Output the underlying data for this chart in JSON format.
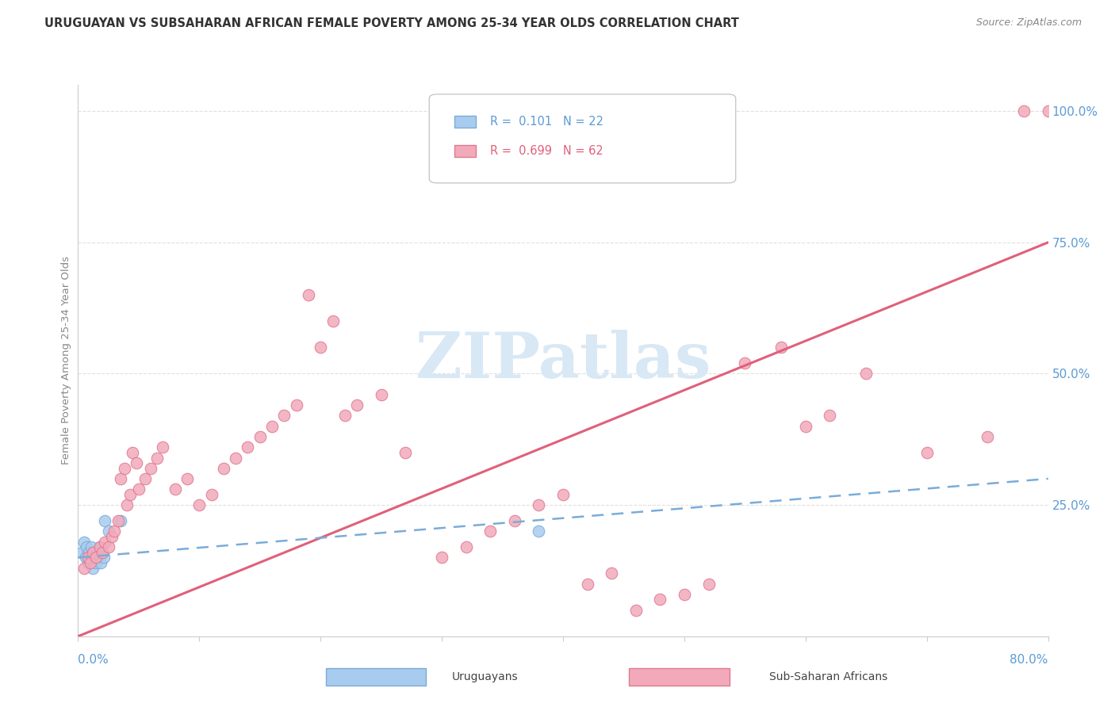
{
  "title": "URUGUAYAN VS SUBSAHARAN AFRICAN FEMALE POVERTY AMONG 25-34 YEAR OLDS CORRELATION CHART",
  "source": "Source: ZipAtlas.com",
  "ylabel": "Female Poverty Among 25-34 Year Olds",
  "xlim": [
    0.0,
    0.8
  ],
  "ylim": [
    0.0,
    1.05
  ],
  "blue_scatter_color": "#A8CCEE",
  "blue_scatter_edge": "#7AACD8",
  "pink_scatter_color": "#F2AABB",
  "pink_scatter_edge": "#E07890",
  "blue_line_color": "#7AACD8",
  "pink_line_color": "#E0607A",
  "watermark_color": "#D8E8F5",
  "ytick_color": "#5B9BD5",
  "xtick_label_color": "#5B9BD5",
  "grid_color": "#E0E0E0",
  "title_color": "#333333",
  "source_color": "#888888",
  "ylabel_color": "#888888",
  "uru_x": [
    0.003,
    0.005,
    0.006,
    0.007,
    0.008,
    0.009,
    0.01,
    0.011,
    0.012,
    0.013,
    0.014,
    0.015,
    0.016,
    0.017,
    0.018,
    0.019,
    0.02,
    0.021,
    0.022,
    0.025,
    0.035,
    0.38
  ],
  "uru_y": [
    0.16,
    0.18,
    0.15,
    0.17,
    0.14,
    0.16,
    0.15,
    0.17,
    0.13,
    0.16,
    0.15,
    0.14,
    0.16,
    0.15,
    0.17,
    0.14,
    0.16,
    0.15,
    0.22,
    0.2,
    0.22,
    0.2
  ],
  "ssa_x": [
    0.005,
    0.008,
    0.01,
    0.012,
    0.015,
    0.018,
    0.02,
    0.022,
    0.025,
    0.028,
    0.03,
    0.033,
    0.035,
    0.038,
    0.04,
    0.043,
    0.045,
    0.048,
    0.05,
    0.055,
    0.06,
    0.065,
    0.07,
    0.08,
    0.09,
    0.1,
    0.11,
    0.12,
    0.13,
    0.14,
    0.15,
    0.16,
    0.17,
    0.18,
    0.19,
    0.2,
    0.21,
    0.22,
    0.23,
    0.25,
    0.27,
    0.3,
    0.32,
    0.34,
    0.36,
    0.38,
    0.4,
    0.42,
    0.44,
    0.46,
    0.48,
    0.5,
    0.52,
    0.55,
    0.58,
    0.6,
    0.62,
    0.65,
    0.7,
    0.75,
    0.78,
    0.8
  ],
  "ssa_y": [
    0.13,
    0.15,
    0.14,
    0.16,
    0.15,
    0.17,
    0.16,
    0.18,
    0.17,
    0.19,
    0.2,
    0.22,
    0.3,
    0.32,
    0.25,
    0.27,
    0.35,
    0.33,
    0.28,
    0.3,
    0.32,
    0.34,
    0.36,
    0.28,
    0.3,
    0.25,
    0.27,
    0.32,
    0.34,
    0.36,
    0.38,
    0.4,
    0.42,
    0.44,
    0.65,
    0.55,
    0.6,
    0.42,
    0.44,
    0.46,
    0.35,
    0.15,
    0.17,
    0.2,
    0.22,
    0.25,
    0.27,
    0.1,
    0.12,
    0.05,
    0.07,
    0.08,
    0.1,
    0.52,
    0.55,
    0.4,
    0.42,
    0.5,
    0.35,
    0.38,
    1.0,
    1.0
  ],
  "ssa_trend_x0": 0.0,
  "ssa_trend_y0": 0.0,
  "ssa_trend_x1": 0.8,
  "ssa_trend_y1": 0.75,
  "uru_trend_x0": 0.0,
  "uru_trend_y0": 0.15,
  "uru_trend_x1": 0.8,
  "uru_trend_y1": 0.3
}
